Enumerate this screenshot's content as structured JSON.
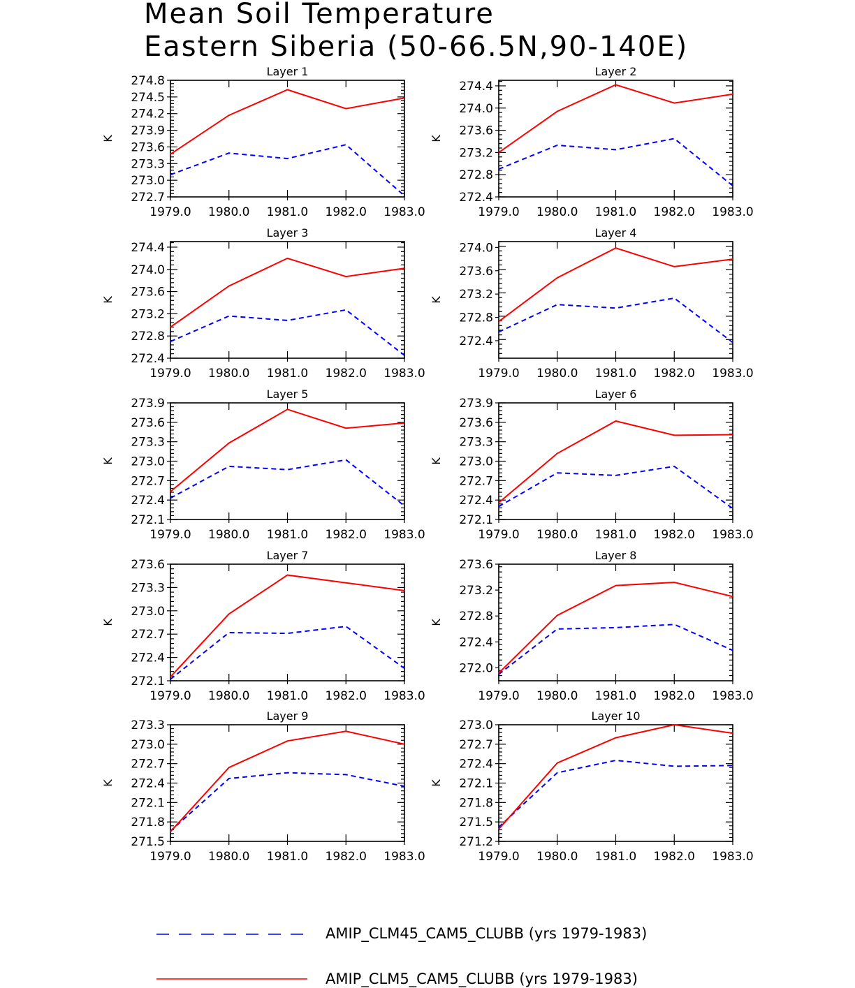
{
  "chart_data": {
    "type": "line",
    "title": [
      "Mean Soil Temperature",
      "Eastern Siberia (50-66.5N,90-140E)"
    ],
    "x": [
      1979.0,
      1980.0,
      1981.0,
      1982.0,
      1983.0
    ],
    "x_tick_labels": [
      "1979.0",
      "1980.0",
      "1981.0",
      "1982.0",
      "1983.0"
    ],
    "ylabel": "K",
    "series_meta": [
      {
        "name": "AMIP_CLM45_CAM5_CLUBB (yrs 1979-1983)",
        "color": "#0000ff",
        "style": "dashed"
      },
      {
        "name": "AMIP_CLM5_CAM5_CLUBB (yrs 1979-1983)",
        "color": "#ff0000",
        "style": "solid"
      }
    ],
    "panels": [
      {
        "title": "Layer 1",
        "ylim": [
          272.7,
          274.8
        ],
        "yticks": [
          "272.7",
          "273.0",
          "273.3",
          "273.6",
          "273.9",
          "274.2",
          "274.5",
          "274.8"
        ],
        "series": [
          {
            "name": "AMIP_CLM45_CAM5_CLUBB",
            "values": [
              273.1,
              273.49,
              273.39,
              273.64,
              272.72
            ]
          },
          {
            "name": "AMIP_CLM5_CAM5_CLUBB",
            "values": [
              273.47,
              274.17,
              274.63,
              274.29,
              274.48
            ]
          }
        ]
      },
      {
        "title": "Layer 2",
        "ylim": [
          272.4,
          274.5
        ],
        "yticks": [
          "272.4",
          "272.8",
          "273.2",
          "273.6",
          "274.0",
          "274.4"
        ],
        "series": [
          {
            "name": "AMIP_CLM45_CAM5_CLUBB",
            "values": [
              272.9,
              273.33,
              273.25,
              273.45,
              272.6
            ]
          },
          {
            "name": "AMIP_CLM5_CAM5_CLUBB",
            "values": [
              273.2,
              273.94,
              274.42,
              274.09,
              274.25
            ]
          }
        ]
      },
      {
        "title": "Layer 3",
        "ylim": [
          272.4,
          274.5
        ],
        "yticks": [
          "272.4",
          "272.8",
          "273.2",
          "273.6",
          "274.0",
          "274.4"
        ],
        "series": [
          {
            "name": "AMIP_CLM45_CAM5_CLUBB",
            "values": [
              272.7,
              273.16,
              273.08,
              273.27,
              272.45
            ]
          },
          {
            "name": "AMIP_CLM5_CAM5_CLUBB",
            "values": [
              272.96,
              273.7,
              274.2,
              273.87,
              274.02
            ]
          }
        ]
      },
      {
        "title": "Layer 4",
        "ylim": [
          272.1,
          274.1
        ],
        "yticks": [
          "272.4",
          "272.8",
          "273.2",
          "273.6",
          "274.0"
        ],
        "series": [
          {
            "name": "AMIP_CLM45_CAM5_CLUBB",
            "values": [
              272.55,
              273.02,
              272.96,
              273.13,
              272.37
            ]
          },
          {
            "name": "AMIP_CLM5_CAM5_CLUBB",
            "values": [
              272.73,
              273.48,
              273.99,
              273.67,
              273.8
            ]
          }
        ]
      },
      {
        "title": "Layer 5",
        "ylim": [
          272.1,
          273.9
        ],
        "yticks": [
          "272.1",
          "272.4",
          "272.7",
          "273.0",
          "273.3",
          "273.6",
          "273.9"
        ],
        "series": [
          {
            "name": "AMIP_CLM45_CAM5_CLUBB",
            "values": [
              272.43,
              272.92,
              272.87,
              273.02,
              272.31
            ]
          },
          {
            "name": "AMIP_CLM5_CAM5_CLUBB",
            "values": [
              272.53,
              273.28,
              273.8,
              273.51,
              273.59
            ]
          }
        ]
      },
      {
        "title": "Layer 6",
        "ylim": [
          272.1,
          273.9
        ],
        "yticks": [
          "272.1",
          "272.4",
          "272.7",
          "273.0",
          "273.3",
          "273.6",
          "273.9"
        ],
        "series": [
          {
            "name": "AMIP_CLM45_CAM5_CLUBB",
            "values": [
              272.3,
              272.82,
              272.78,
              272.92,
              272.27
            ]
          },
          {
            "name": "AMIP_CLM5_CAM5_CLUBB",
            "values": [
              272.36,
              273.12,
              273.62,
              273.4,
              273.41
            ]
          }
        ]
      },
      {
        "title": "Layer 7",
        "ylim": [
          272.1,
          273.6
        ],
        "yticks": [
          "272.1",
          "272.4",
          "272.7",
          "273.0",
          "273.3",
          "273.6"
        ],
        "series": [
          {
            "name": "AMIP_CLM45_CAM5_CLUBB",
            "values": [
              272.12,
              272.72,
              272.71,
              272.8,
              272.26
            ]
          },
          {
            "name": "AMIP_CLM5_CAM5_CLUBB",
            "values": [
              272.15,
              272.96,
              273.46,
              273.36,
              273.26
            ]
          }
        ]
      },
      {
        "title": "Layer 8",
        "ylim": [
          271.8,
          273.6
        ],
        "yticks": [
          "272.0",
          "272.4",
          "272.8",
          "273.2",
          "273.6"
        ],
        "series": [
          {
            "name": "AMIP_CLM45_CAM5_CLUBB",
            "values": [
              271.9,
              272.6,
              272.62,
              272.67,
              272.27
            ]
          },
          {
            "name": "AMIP_CLM5_CAM5_CLUBB",
            "values": [
              271.92,
              272.81,
              273.27,
              273.32,
              273.1
            ]
          }
        ]
      },
      {
        "title": "Layer 9",
        "ylim": [
          271.5,
          273.3
        ],
        "yticks": [
          "271.5",
          "271.8",
          "272.1",
          "272.4",
          "272.7",
          "273.0",
          "273.3"
        ],
        "series": [
          {
            "name": "AMIP_CLM45_CAM5_CLUBB",
            "values": [
              271.66,
              272.47,
              272.56,
              272.53,
              272.35
            ]
          },
          {
            "name": "AMIP_CLM5_CAM5_CLUBB",
            "values": [
              271.65,
              272.64,
              273.05,
              273.2,
              273.0
            ]
          }
        ]
      },
      {
        "title": "Layer 10",
        "ylim": [
          271.2,
          273.0
        ],
        "yticks": [
          "271.2",
          "271.5",
          "271.8",
          "272.1",
          "272.4",
          "272.7",
          "273.0"
        ],
        "series": [
          {
            "name": "AMIP_CLM45_CAM5_CLUBB",
            "values": [
              271.42,
              272.26,
              272.45,
              272.36,
              272.37
            ]
          },
          {
            "name": "AMIP_CLM5_CAM5_CLUBB",
            "values": [
              271.39,
              272.41,
              272.8,
              273.0,
              272.87
            ]
          }
        ]
      }
    ]
  }
}
